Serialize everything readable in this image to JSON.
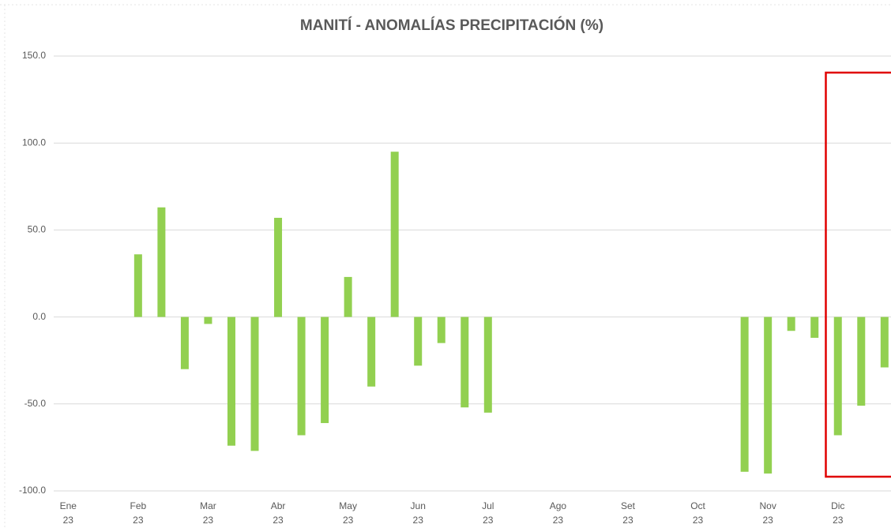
{
  "chart_data": {
    "type": "bar",
    "title": "MANITÍ  - ANOMALÍAS PRECIPITACIÓN (%)",
    "categories": [
      "Ene\n23",
      null,
      null,
      "Feb\n23",
      null,
      null,
      "Mar\n23",
      null,
      null,
      "Abr\n23",
      null,
      null,
      "May\n23",
      null,
      null,
      "Jun\n23",
      null,
      null,
      "Jul\n23",
      null,
      null,
      "Ago\n23",
      null,
      null,
      "Set\n23",
      null,
      null,
      "Oct\n23",
      null,
      null,
      "Nov\n23",
      null,
      null,
      "Dic\n23",
      null,
      null
    ],
    "values": [
      null,
      null,
      null,
      36,
      63,
      -30,
      -4,
      -74,
      -77,
      57,
      -68,
      -61,
      23,
      -40,
      95,
      -28,
      -15,
      -52,
      -55,
      null,
      null,
      null,
      null,
      null,
      null,
      null,
      null,
      null,
      null,
      -89,
      -90,
      -8,
      -12,
      -68,
      -51,
      -29
    ],
    "color": "#92d050",
    "ylim": [
      -100,
      150
    ],
    "yticks": [
      {
        "value": -100,
        "label": "-100.0"
      },
      {
        "value": -50,
        "label": "-50.0"
      },
      {
        "value": 0,
        "label": "0.0"
      },
      {
        "value": 50,
        "label": "50.0"
      },
      {
        "value": 100,
        "label": "100.0"
      },
      {
        "value": 150,
        "label": "150.0"
      }
    ],
    "grid": true
  }
}
